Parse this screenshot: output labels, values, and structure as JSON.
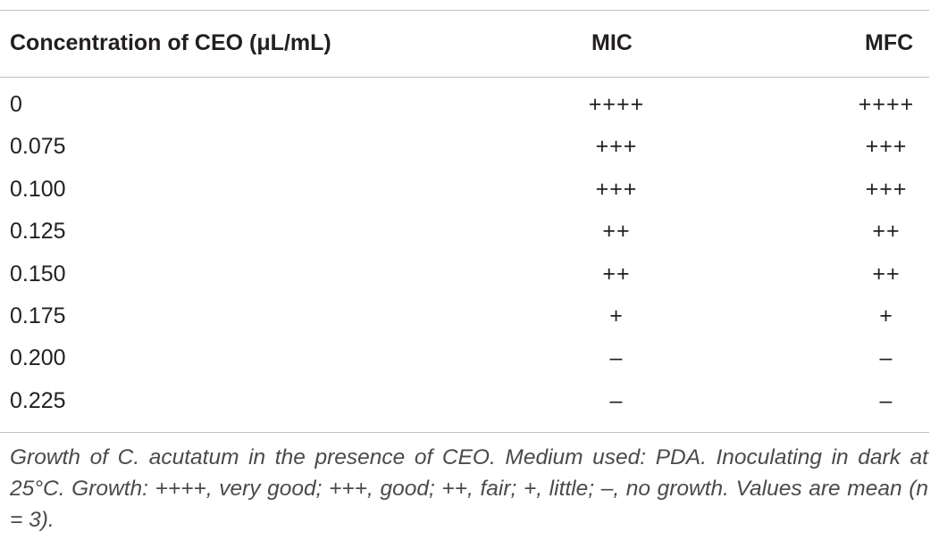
{
  "table": {
    "headers": {
      "concentration": "Concentration of CEO (μL/mL)",
      "mic": "MIC",
      "mfc": "MFC"
    },
    "rows": [
      {
        "concentration": "0",
        "mic": "++++",
        "mfc": "++++"
      },
      {
        "concentration": "0.075",
        "mic": "+++",
        "mfc": "+++"
      },
      {
        "concentration": "0.100",
        "mic": "+++",
        "mfc": "+++"
      },
      {
        "concentration": "0.125",
        "mic": "++",
        "mfc": "++"
      },
      {
        "concentration": "0.150",
        "mic": "++",
        "mfc": "++"
      },
      {
        "concentration": "0.175",
        "mic": "+",
        "mfc": "+"
      },
      {
        "concentration": "0.200",
        "mic": "–",
        "mfc": "–"
      },
      {
        "concentration": "0.225",
        "mic": "–",
        "mfc": "–"
      }
    ],
    "footnote": "Growth of C. acutatum in the presence of CEO. Medium used: PDA. Inoculating in dark at 25°C. Growth: ++++, very good; +++, good; ++, fair; +, little; –, no growth. Values are mean (n = 3)."
  }
}
